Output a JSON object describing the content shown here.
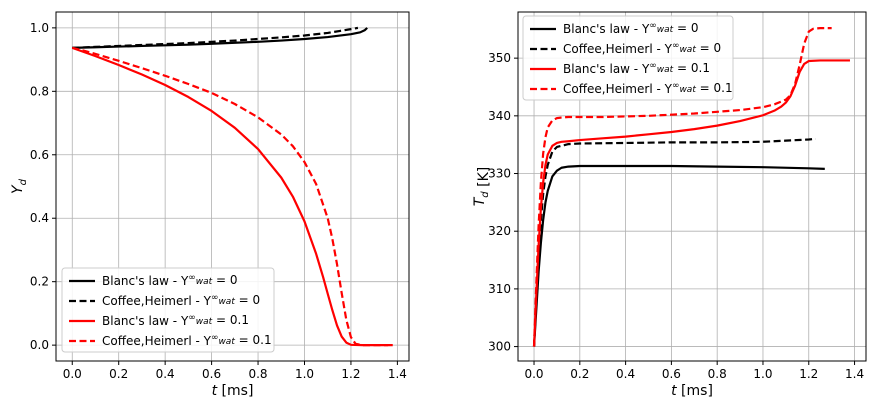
{
  "chart_data": [
    {
      "type": "line",
      "xlabel": "t [ms]",
      "ylabel": "Y_d",
      "xlim": [
        -0.07,
        1.45
      ],
      "ylim": [
        -0.05,
        1.05
      ],
      "xticks": [
        0.0,
        0.2,
        0.4,
        0.6,
        0.8,
        1.0,
        1.2,
        1.4
      ],
      "yticks": [
        0.0,
        0.2,
        0.4,
        0.6,
        0.8,
        1.0
      ],
      "xtick_labels": [
        "0.0",
        "0.2",
        "0.4",
        "0.6",
        "0.8",
        "1.0",
        "1.2",
        "1.4"
      ],
      "ytick_labels": [
        "0.0",
        "0.2",
        "0.4",
        "0.6",
        "0.8",
        "1.0"
      ],
      "grid": true,
      "legend_position": "lower-left",
      "series": [
        {
          "name": "Blanc's law - Y^∞_wat = 0",
          "color": "#000000",
          "dash": "solid",
          "x": [
            0.0,
            0.1,
            0.2,
            0.3,
            0.4,
            0.5,
            0.6,
            0.7,
            0.8,
            0.9,
            1.0,
            1.1,
            1.2,
            1.24,
            1.26,
            1.27
          ],
          "y": [
            0.937,
            0.939,
            0.941,
            0.943,
            0.945,
            0.947,
            0.95,
            0.953,
            0.956,
            0.96,
            0.965,
            0.971,
            0.98,
            0.986,
            0.993,
            1.0
          ]
        },
        {
          "name": "Coffee,Heimerl - Y^∞_wat = 0",
          "color": "#000000",
          "dash": "dashed",
          "x": [
            0.0,
            0.1,
            0.2,
            0.3,
            0.4,
            0.5,
            0.6,
            0.7,
            0.8,
            0.9,
            1.0,
            1.1,
            1.15,
            1.2,
            1.23
          ],
          "y": [
            0.937,
            0.94,
            0.943,
            0.946,
            0.949,
            0.952,
            0.956,
            0.96,
            0.965,
            0.97,
            0.976,
            0.984,
            0.99,
            0.996,
            1.0
          ]
        },
        {
          "name": "Blanc's law - Y^∞_wat = 0.1",
          "color": "#ff0000",
          "dash": "solid",
          "x": [
            0.0,
            0.05,
            0.1,
            0.2,
            0.3,
            0.4,
            0.5,
            0.6,
            0.7,
            0.8,
            0.9,
            0.95,
            1.0,
            1.05,
            1.08,
            1.1,
            1.12,
            1.14,
            1.16,
            1.18,
            1.2,
            1.25,
            1.3,
            1.38
          ],
          "y": [
            0.937,
            0.924,
            0.911,
            0.883,
            0.853,
            0.82,
            0.782,
            0.738,
            0.685,
            0.618,
            0.528,
            0.468,
            0.39,
            0.288,
            0.215,
            0.162,
            0.11,
            0.062,
            0.027,
            0.008,
            0.001,
            0.0,
            0.0,
            0.0
          ]
        },
        {
          "name": "Coffee,Heimerl - Y^∞_wat = 0.1",
          "color": "#ff0000",
          "dash": "dashed",
          "x": [
            0.0,
            0.05,
            0.1,
            0.2,
            0.3,
            0.4,
            0.5,
            0.6,
            0.7,
            0.8,
            0.9,
            0.95,
            1.0,
            1.05,
            1.1,
            1.12,
            1.14,
            1.16,
            1.18,
            1.2,
            1.22,
            1.25,
            1.3,
            1.36
          ],
          "y": [
            0.937,
            0.928,
            0.918,
            0.896,
            0.873,
            0.849,
            0.823,
            0.795,
            0.76,
            0.718,
            0.664,
            0.627,
            0.577,
            0.508,
            0.4,
            0.335,
            0.255,
            0.165,
            0.08,
            0.025,
            0.004,
            0.0,
            0.0,
            0.0
          ]
        }
      ]
    },
    {
      "type": "line",
      "xlabel": "t [ms]",
      "ylabel": "T_d [K]",
      "xlim": [
        -0.07,
        1.45
      ],
      "ylim": [
        297.5,
        358.0
      ],
      "xticks": [
        0.0,
        0.2,
        0.4,
        0.6,
        0.8,
        1.0,
        1.2,
        1.4
      ],
      "yticks": [
        300,
        310,
        320,
        330,
        340,
        350
      ],
      "xtick_labels": [
        "0.0",
        "0.2",
        "0.4",
        "0.6",
        "0.8",
        "1.0",
        "1.2",
        "1.4"
      ],
      "ytick_labels": [
        "300",
        "310",
        "320",
        "330",
        "340",
        "350"
      ],
      "grid": true,
      "legend_position": "upper-left",
      "series": [
        {
          "name": "Blanc's law - Y^∞_wat = 0",
          "color": "#000000",
          "dash": "solid",
          "x": [
            0.0,
            0.01,
            0.02,
            0.03,
            0.04,
            0.05,
            0.06,
            0.08,
            0.1,
            0.12,
            0.15,
            0.2,
            0.4,
            0.6,
            0.8,
            1.0,
            1.2,
            1.27
          ],
          "y": [
            300.0,
            306.5,
            313.0,
            318.0,
            322.0,
            325.0,
            327.0,
            329.5,
            330.5,
            331.0,
            331.2,
            331.3,
            331.3,
            331.3,
            331.2,
            331.1,
            330.9,
            330.8
          ]
        },
        {
          "name": "Coffee,Heimerl - Y^∞_wat = 0",
          "color": "#000000",
          "dash": "dashed",
          "x": [
            0.0,
            0.01,
            0.02,
            0.03,
            0.04,
            0.05,
            0.06,
            0.08,
            0.1,
            0.15,
            0.2,
            0.4,
            0.6,
            0.8,
            1.0,
            1.1,
            1.2,
            1.23
          ],
          "y": [
            300.0,
            308.5,
            316.0,
            322.0,
            326.5,
            329.5,
            331.5,
            333.8,
            334.6,
            335.1,
            335.2,
            335.3,
            335.4,
            335.4,
            335.5,
            335.7,
            335.9,
            336.0
          ]
        },
        {
          "name": "Blanc's law - Y^∞_wat = 0.1",
          "color": "#ff0000",
          "dash": "solid",
          "x": [
            0.0,
            0.01,
            0.02,
            0.03,
            0.04,
            0.05,
            0.06,
            0.08,
            0.1,
            0.12,
            0.15,
            0.2,
            0.3,
            0.4,
            0.5,
            0.6,
            0.7,
            0.8,
            0.9,
            1.0,
            1.05,
            1.08,
            1.1,
            1.12,
            1.14,
            1.16,
            1.18,
            1.2,
            1.25,
            1.3,
            1.38
          ],
          "y": [
            300.0,
            309.0,
            317.5,
            324.0,
            328.5,
            331.5,
            333.3,
            334.8,
            335.3,
            335.5,
            335.6,
            335.8,
            336.1,
            336.4,
            336.8,
            337.2,
            337.7,
            338.3,
            339.1,
            340.1,
            340.9,
            341.6,
            342.3,
            343.4,
            345.2,
            347.6,
            349.0,
            349.5,
            349.6,
            349.6,
            349.6
          ]
        },
        {
          "name": "Coffee,Heimerl - Y^∞_wat = 0.1",
          "color": "#ff0000",
          "dash": "dashed",
          "x": [
            0.0,
            0.01,
            0.02,
            0.03,
            0.04,
            0.05,
            0.06,
            0.08,
            0.1,
            0.12,
            0.15,
            0.2,
            0.3,
            0.4,
            0.5,
            0.6,
            0.7,
            0.8,
            0.9,
            1.0,
            1.05,
            1.1,
            1.12,
            1.14,
            1.16,
            1.18,
            1.2,
            1.22,
            1.25,
            1.3
          ],
          "y": [
            300.0,
            311.0,
            321.0,
            328.5,
            333.5,
            336.3,
            338.0,
            339.2,
            339.6,
            339.7,
            339.8,
            339.8,
            339.8,
            339.9,
            340.0,
            340.2,
            340.4,
            340.7,
            341.0,
            341.5,
            342.0,
            342.8,
            343.6,
            345.5,
            348.8,
            352.5,
            354.6,
            355.1,
            355.2,
            355.2
          ]
        }
      ]
    }
  ]
}
